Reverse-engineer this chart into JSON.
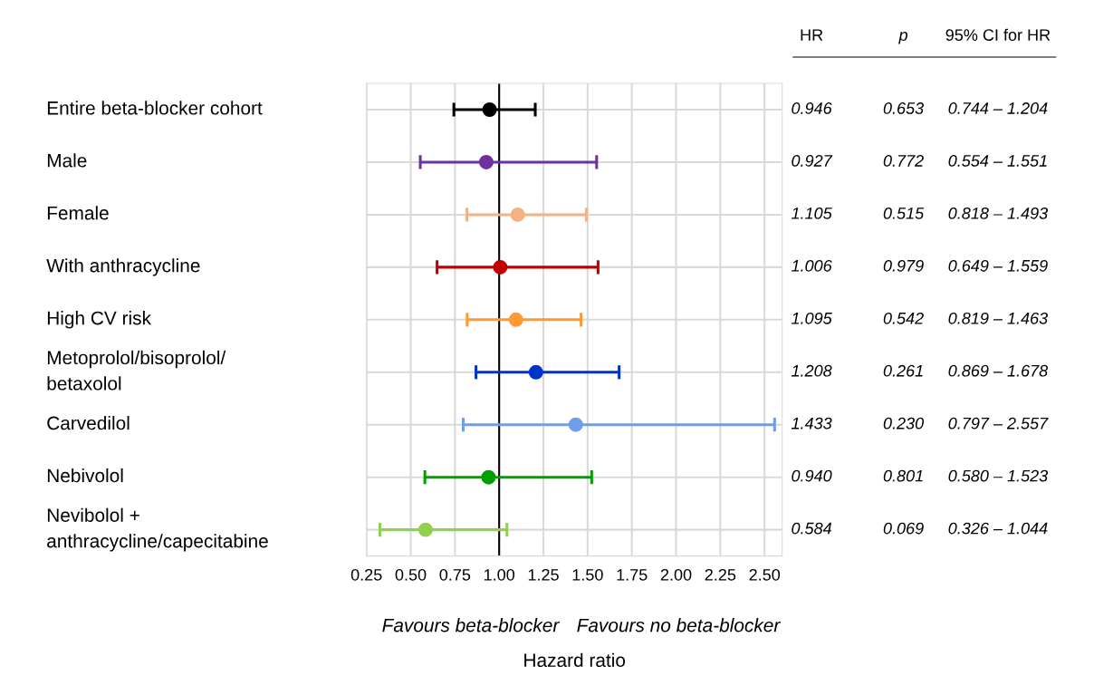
{
  "chart_data": {
    "type": "scatter",
    "orientation": "horizontal",
    "xlabel": "Hazard ratio",
    "categories": [
      "Entire beta-blocker cohort",
      "Male",
      "Female",
      "With anthracycline",
      "High CV risk",
      "Metoprolol/bisoprolol/\nbetaxolol",
      "Carvedilol",
      "Nebivolol",
      "Nevibolol +\nanthracycline/capecitabine"
    ],
    "values": [
      0.946,
      0.927,
      1.105,
      1.006,
      1.095,
      1.208,
      1.433,
      0.94,
      0.584
    ],
    "errors": [
      [
        0.744,
        1.204
      ],
      [
        0.554,
        1.551
      ],
      [
        0.818,
        1.493
      ],
      [
        0.649,
        1.559
      ],
      [
        0.819,
        1.463
      ],
      [
        0.869,
        1.678
      ],
      [
        0.797,
        2.557
      ],
      [
        0.58,
        1.523
      ],
      [
        0.326,
        1.044
      ]
    ],
    "colors": [
      "#000000",
      "#7030a0",
      "#f4b183",
      "#c00000",
      "#ff9933",
      "#0033cc",
      "#6d9eeb",
      "#00a000",
      "#92d050"
    ],
    "value_labels": [
      "0.946",
      "0.927",
      "1.105",
      "1.006",
      "1.095",
      "1.208",
      "1.433",
      "0.940",
      "0.584"
    ],
    "annotations": [
      "HR",
      "p",
      "95% CI for HR",
      "0.653",
      "0.772",
      "0.515",
      "0.979",
      "0.542",
      "0.261",
      "0.230",
      "0.801",
      "0.069",
      "0.744 – 1.204",
      "0.554 – 1.551",
      "0.818 – 1.493",
      "0.649 – 1.559",
      "0.819 – 1.463",
      "0.869 – 1.678",
      "0.797 – 2.557",
      "0.580 – 1.523",
      "0.326 – 1.044",
      "Favours beta-blocker",
      "Favours no beta-blocker"
    ],
    "xlim": [
      0.25,
      2.6
    ],
    "xticks": [
      {
        "value": 0.25,
        "label": "0.25"
      },
      {
        "value": 0.5,
        "label": "0.50"
      },
      {
        "value": 0.75,
        "label": "0.75"
      },
      {
        "value": 1.0,
        "label": "1.00"
      },
      {
        "value": 1.25,
        "label": "1.25"
      },
      {
        "value": 1.5,
        "label": "1.50"
      },
      {
        "value": 1.75,
        "label": "1.75"
      },
      {
        "value": 2.0,
        "label": "2.00"
      },
      {
        "value": 2.25,
        "label": "2.25"
      },
      {
        "value": 2.5,
        "label": "2.50"
      }
    ],
    "ref_lines": [
      {
        "axis": "x",
        "value": 1.0,
        "color": "#000000"
      }
    ],
    "grid": true,
    "marker": "circle",
    "line_style": "solid"
  }
}
